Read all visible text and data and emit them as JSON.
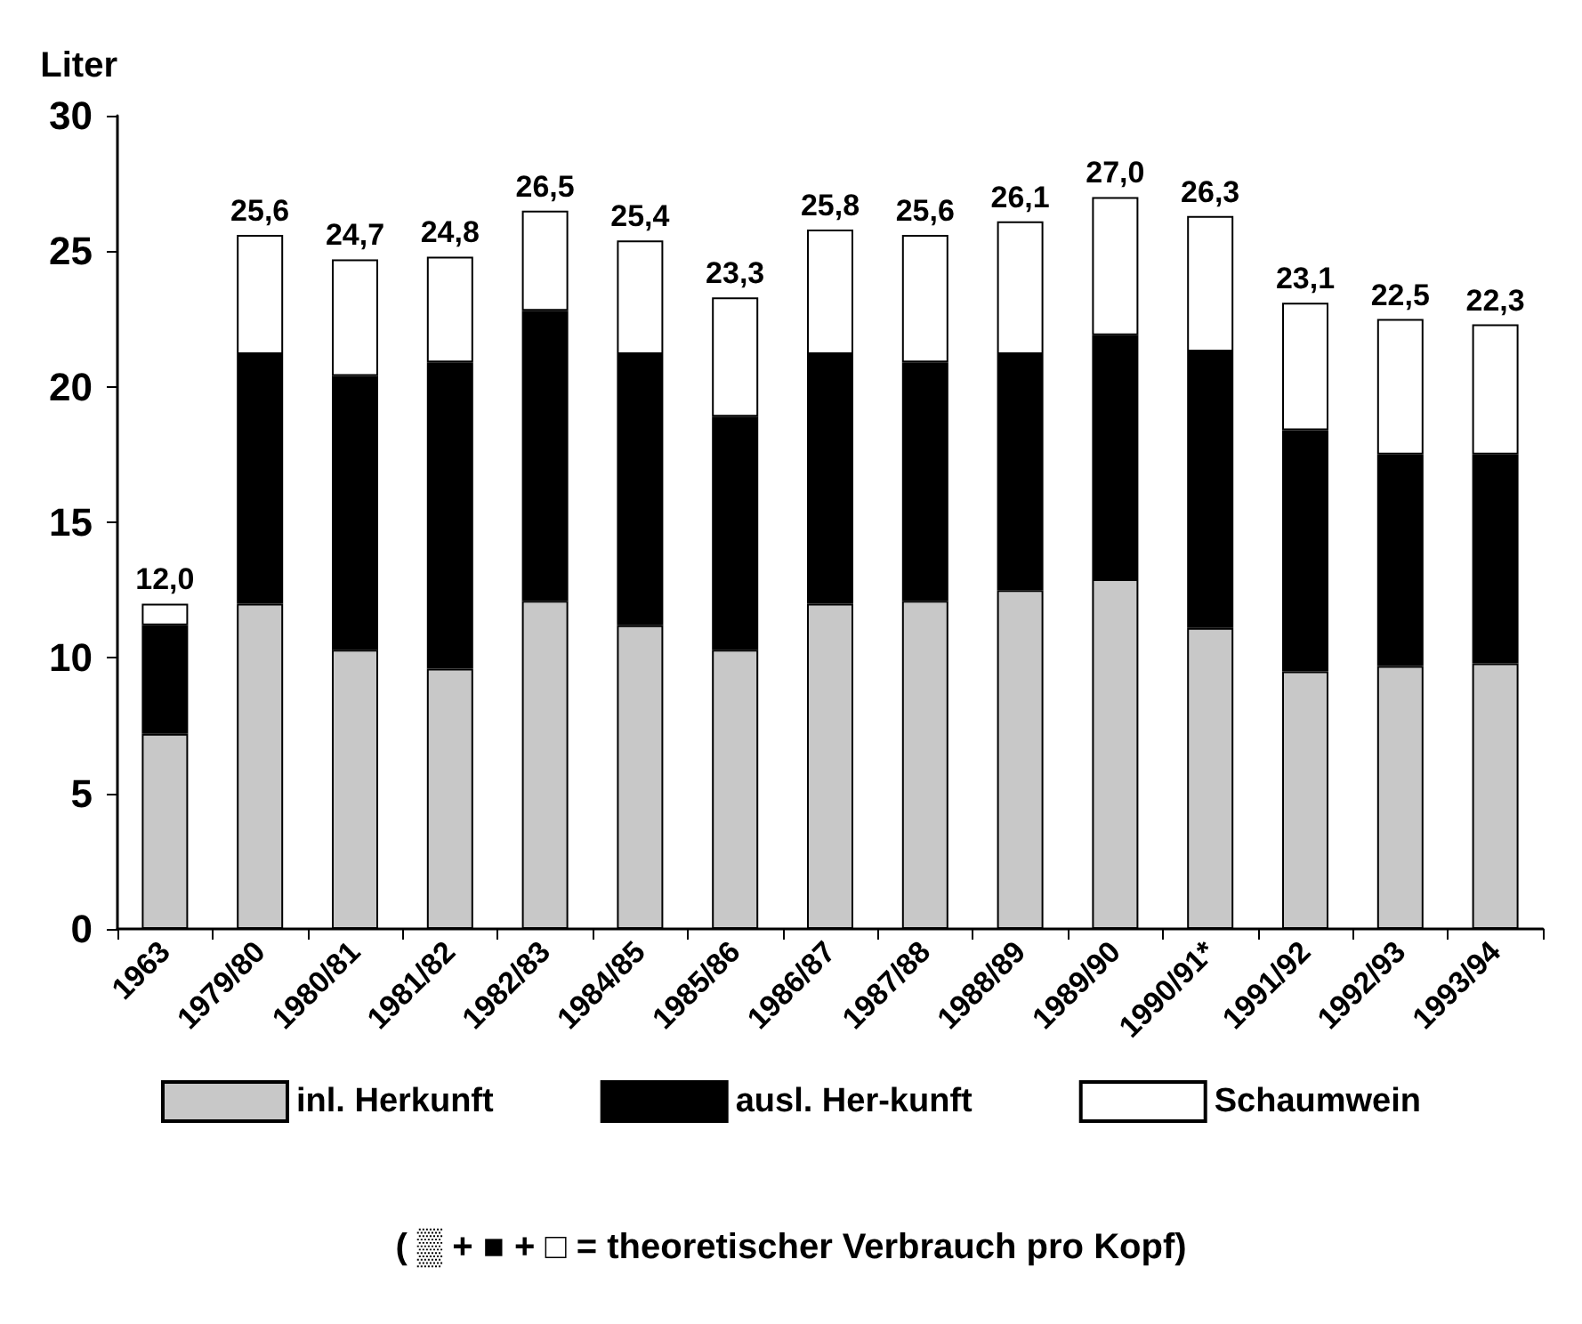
{
  "chart_data": {
    "type": "bar",
    "stacked": true,
    "ylabel": "Liter",
    "categories": [
      "1963",
      "1979/80",
      "1980/81",
      "1981/82",
      "1982/83",
      "1984/85",
      "1985/86",
      "1986/87",
      "1987/88",
      "1988/89",
      "1989/90",
      "1990/91*",
      "1991/92",
      "1992/93",
      "1993/94"
    ],
    "series": [
      {
        "name": "inl. Herkunft",
        "color": "#c8c8c8",
        "values": [
          7.2,
          12.0,
          10.3,
          9.6,
          12.1,
          11.2,
          10.3,
          12.0,
          12.1,
          12.5,
          12.9,
          11.1,
          9.5,
          9.7,
          9.8
        ]
      },
      {
        "name": "ausl. Her-kunft",
        "color": "#000000",
        "values": [
          4.0,
          9.2,
          10.1,
          11.3,
          10.7,
          10.0,
          8.6,
          9.2,
          8.8,
          8.7,
          9.0,
          10.2,
          8.9,
          7.8,
          7.7
        ]
      },
      {
        "name": "Schaumwein",
        "color": "#ffffff",
        "values": [
          0.8,
          4.4,
          4.3,
          3.9,
          3.7,
          4.2,
          4.4,
          4.6,
          4.7,
          4.9,
          5.1,
          5.0,
          4.7,
          5.0,
          4.8
        ]
      }
    ],
    "totals": [
      "12,0",
      "25,6",
      "24,7",
      "24,8",
      "26,5",
      "25,4",
      "23,3",
      "25,8",
      "25,6",
      "26,1",
      "27,0",
      "26,3",
      "23,1",
      "22,5",
      "22,3"
    ],
    "ylim": [
      0,
      30
    ],
    "yticks": [
      0,
      5,
      10,
      15,
      20,
      25,
      30
    ],
    "grid": false,
    "legend": "bottom",
    "annotations": [
      "( ▒ + ■ + □ = theoretischer Verbrauch pro Kopf)"
    ]
  }
}
